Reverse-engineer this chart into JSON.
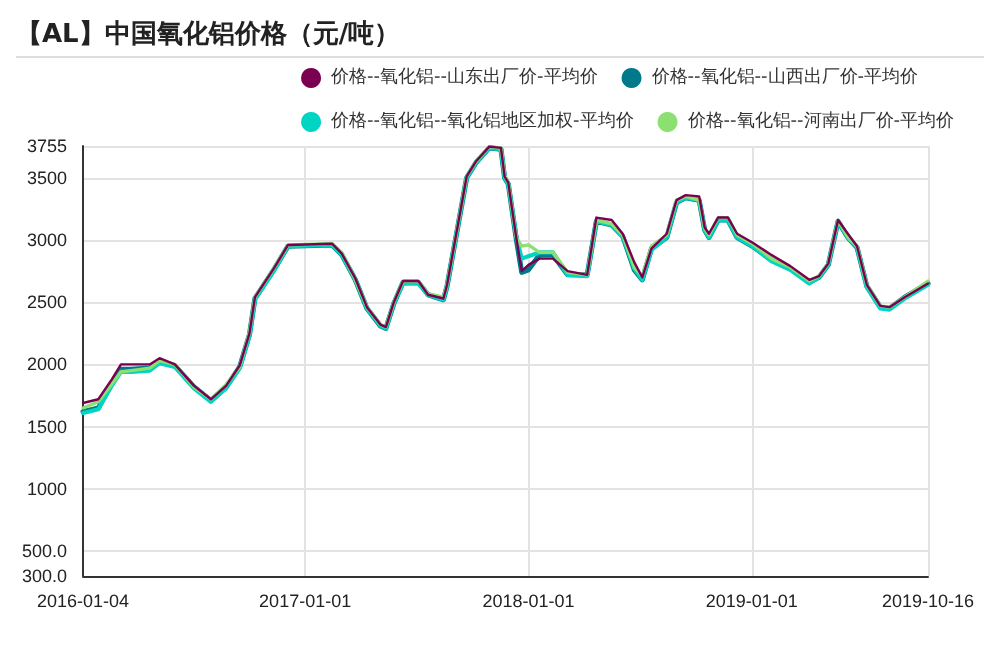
{
  "chart_data": {
    "type": "line",
    "title": "【AL】中国氧化铝价格（元/吨）",
    "x": [
      "2016-01-04",
      "2016-01-29",
      "2016-02-20",
      "2016-03-06",
      "2016-03-22",
      "2016-04-22",
      "2016-05-08",
      "2016-06-02",
      "2016-07-03",
      "2016-07-31",
      "2016-08-25",
      "2016-09-16",
      "2016-10-02",
      "2016-10-11",
      "2016-11-12",
      "2016-12-04",
      "2017-02-14",
      "2017-03-02",
      "2017-03-24",
      "2017-04-12",
      "2017-05-04",
      "2017-05-13",
      "2017-05-26",
      "2017-06-10",
      "2017-07-05",
      "2017-07-21",
      "2017-08-15",
      "2017-08-21",
      "2017-09-22",
      "2017-10-07",
      "2017-10-29",
      "2017-11-17",
      "2017-11-23",
      "2017-11-29",
      "2017-12-12",
      "2017-12-21",
      "2018-01-01",
      "2018-01-19",
      "2018-02-10",
      "2018-03-06",
      "2018-04-07",
      "2018-04-22",
      "2018-05-17",
      "2018-06-04",
      "2018-06-23",
      "2018-07-06",
      "2018-07-21",
      "2018-08-15",
      "2018-08-31",
      "2018-09-15",
      "2018-10-07",
      "2018-10-16",
      "2018-10-23",
      "2018-11-07",
      "2018-11-23",
      "2018-12-08",
      "2019-01-02",
      "2019-02-02",
      "2019-03-05",
      "2019-04-05",
      "2019-04-21",
      "2019-05-06",
      "2019-05-22",
      "2019-06-07",
      "2019-06-22",
      "2019-07-08",
      "2019-07-30",
      "2019-08-14",
      "2019-09-08",
      "2019-10-16"
    ],
    "series": [
      {
        "name": "价格--氧化铝--山东出厂价-平均价",
        "color": "#7b0051",
        "values": [
          1690,
          1720,
          1880,
          2000,
          2000,
          2000,
          2050,
          2000,
          1830,
          1720,
          1830,
          1990,
          2250,
          2540,
          2780,
          2960,
          2970,
          2890,
          2690,
          2460,
          2320,
          2300,
          2500,
          2670,
          2670,
          2560,
          2530,
          2640,
          3510,
          3630,
          3750,
          3740,
          3510,
          3460,
          3020,
          2750,
          2800,
          2850,
          2850,
          2750,
          2720,
          3180,
          3160,
          3050,
          2820,
          2700,
          2930,
          3050,
          3320,
          3360,
          3350,
          3100,
          3050,
          3180,
          3180,
          3050,
          2980,
          2880,
          2790,
          2680,
          2710,
          2810,
          3160,
          3050,
          2950,
          2640,
          2470,
          2460,
          2540,
          2650
        ]
      },
      {
        "name": "价格--氧化铝--山西出厂价-平均价",
        "color": "#00798a",
        "values": [
          1620,
          1650,
          1850,
          1960,
          1960,
          1970,
          2020,
          1990,
          1820,
          1710,
          1820,
          1980,
          2240,
          2530,
          2770,
          2950,
          2960,
          2880,
          2680,
          2450,
          2310,
          2290,
          2490,
          2660,
          2660,
          2560,
          2520,
          2630,
          3500,
          3620,
          3740,
          3730,
          3500,
          3450,
          3010,
          2740,
          2760,
          2880,
          2880,
          2720,
          2720,
          3150,
          3120,
          3030,
          2760,
          2680,
          2930,
          3020,
          3300,
          3340,
          3320,
          3080,
          3020,
          3160,
          3160,
          3020,
          2950,
          2840,
          2770,
          2660,
          2700,
          2800,
          3150,
          3020,
          2940,
          2630,
          2460,
          2450,
          2540,
          2650
        ]
      },
      {
        "name": "价格--氧化铝--氧化铝地区加权-平均价",
        "color": "#00d4c3",
        "values": [
          1610,
          1640,
          1830,
          1940,
          1940,
          1950,
          2010,
          1980,
          1810,
          1700,
          1810,
          1970,
          2230,
          2520,
          2760,
          2950,
          2960,
          2880,
          2680,
          2450,
          2310,
          2290,
          2490,
          2650,
          2650,
          2560,
          2520,
          2630,
          3500,
          3620,
          3740,
          3730,
          3500,
          3450,
          3030,
          2850,
          2870,
          2900,
          2900,
          2720,
          2710,
          3150,
          3120,
          3030,
          2770,
          2680,
          2920,
          3020,
          3300,
          3340,
          3320,
          3080,
          3020,
          3160,
          3160,
          3020,
          2950,
          2830,
          2760,
          2650,
          2700,
          2800,
          3150,
          3020,
          2940,
          2620,
          2450,
          2440,
          2530,
          2640
        ]
      },
      {
        "name": "价格--氧化铝--河南出厂价-平均价",
        "color": "#8ce071",
        "values": [
          1650,
          1700,
          1840,
          1940,
          1950,
          1970,
          2030,
          2000,
          1820,
          1720,
          1840,
          1980,
          2260,
          2540,
          2780,
          2960,
          2970,
          2900,
          2680,
          2460,
          2320,
          2300,
          2500,
          2670,
          2670,
          2570,
          2540,
          2640,
          3510,
          3630,
          3750,
          3740,
          3520,
          3460,
          3020,
          2950,
          2960,
          2900,
          2900,
          2740,
          2720,
          3160,
          3130,
          3040,
          2780,
          2710,
          2950,
          3040,
          3320,
          3350,
          3320,
          3090,
          3040,
          3180,
          3180,
          3040,
          2970,
          2850,
          2780,
          2670,
          2710,
          2810,
          3160,
          3020,
          2950,
          2640,
          2470,
          2460,
          2540,
          2670
        ]
      }
    ],
    "xlim": [
      "2016-01-04",
      "2019-10-16"
    ],
    "xticks": [
      "2016-01-04",
      "2017-01-01",
      "2018-01-01",
      "2019-01-01",
      "2019-10-16"
    ],
    "ylim": [
      300,
      3755
    ],
    "yticks": [
      {
        "value": 300,
        "label": "300.0"
      },
      {
        "value": 500,
        "label": "500.0"
      },
      1000,
      1500,
      2000,
      2500,
      3000,
      3500,
      3755
    ],
    "grid": true,
    "legend": "top right",
    "marker": "none",
    "line_style": "solid"
  }
}
